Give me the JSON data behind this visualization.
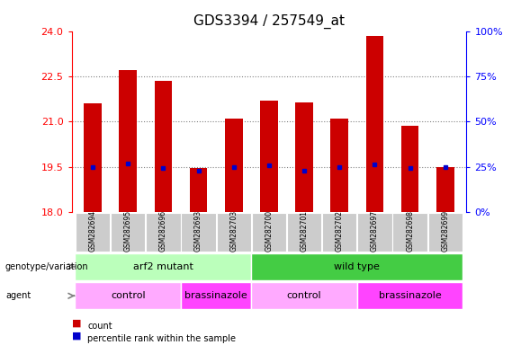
{
  "title": "GDS3394 / 257549_at",
  "samples": [
    "GSM282694",
    "GSM282695",
    "GSM282696",
    "GSM282693",
    "GSM282703",
    "GSM282700",
    "GSM282701",
    "GSM282702",
    "GSM282697",
    "GSM282698",
    "GSM282699"
  ],
  "counts": [
    21.6,
    22.7,
    22.35,
    19.45,
    21.1,
    21.7,
    21.65,
    21.1,
    23.85,
    20.85,
    19.5
  ],
  "percentile_ranks_left": [
    19.5,
    19.6,
    19.45,
    19.38,
    19.5,
    19.55,
    19.38,
    19.48,
    19.57,
    19.45,
    19.5
  ],
  "ylim": [
    18,
    24
  ],
  "yticks": [
    18,
    19.5,
    21,
    22.5,
    24
  ],
  "y2lim": [
    0,
    100
  ],
  "y2ticks": [
    0,
    25,
    50,
    75,
    100
  ],
  "y2ticklabels": [
    "0%",
    "25%",
    "50%",
    "75%",
    "100%"
  ],
  "bar_color": "#cc0000",
  "dot_color": "#0000cc",
  "bar_width": 0.5,
  "sample_box_color": "#cccccc",
  "genotype_groups": [
    {
      "label": "arf2 mutant",
      "start": 0,
      "end": 5,
      "color": "#bbffbb"
    },
    {
      "label": "wild type",
      "start": 5,
      "end": 11,
      "color": "#44cc44"
    }
  ],
  "agent_groups": [
    {
      "label": "control",
      "start": 0,
      "end": 3,
      "color": "#ffaaff"
    },
    {
      "label": "brassinazole",
      "start": 3,
      "end": 5,
      "color": "#ff44ff"
    },
    {
      "label": "control",
      "start": 5,
      "end": 8,
      "color": "#ffaaff"
    },
    {
      "label": "brassinazole",
      "start": 8,
      "end": 11,
      "color": "#ff44ff"
    }
  ],
  "legend_count_color": "#cc0000",
  "legend_pct_color": "#0000cc",
  "tick_fontsize": 8,
  "title_fontsize": 11,
  "label_fontsize": 8,
  "sample_fontsize": 5.5,
  "grid_yticks": [
    19.5,
    21,
    22.5
  ]
}
